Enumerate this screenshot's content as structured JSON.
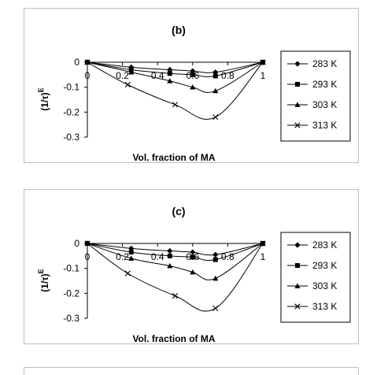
{
  "chart_data": [
    {
      "type": "line",
      "title": "(b)",
      "xlabel": "Vol. fraction of MA",
      "ylabel": "(1/τ)",
      "ylabel_superscript": "E",
      "xlim": [
        0,
        1
      ],
      "ylim": [
        -0.3,
        0
      ],
      "xticks": [
        "0",
        "0.2",
        "0.4",
        "0.6",
        "0.8",
        "1"
      ],
      "yticks": [
        "0",
        "-0.1",
        "-0.2",
        "-0.3"
      ],
      "grid": false,
      "legend_position": "right",
      "series": [
        {
          "name": "283 K",
          "marker": "diamond",
          "x": [
            0,
            0.25,
            0.47,
            0.6,
            0.73,
            1
          ],
          "y": [
            0,
            -0.02,
            -0.03,
            -0.035,
            -0.04,
            0
          ]
        },
        {
          "name": "293 K",
          "marker": "square",
          "x": [
            0,
            0.25,
            0.47,
            0.6,
            0.73,
            1
          ],
          "y": [
            0,
            -0.03,
            -0.045,
            -0.05,
            -0.055,
            0
          ]
        },
        {
          "name": "303 K",
          "marker": "triangle",
          "x": [
            0,
            0.25,
            0.47,
            0.6,
            0.73,
            1
          ],
          "y": [
            0,
            -0.04,
            -0.075,
            -0.1,
            -0.115,
            0
          ]
        },
        {
          "name": "313 K",
          "marker": "x",
          "x": [
            0,
            0.23,
            0.5,
            0.73,
            1
          ],
          "y": [
            0,
            -0.09,
            -0.17,
            -0.22,
            0
          ]
        }
      ]
    },
    {
      "type": "line",
      "title": "(c)",
      "xlabel": "Vol. fraction of MA",
      "ylabel": "(1/τ)",
      "ylabel_superscript": "E",
      "xlim": [
        0,
        1
      ],
      "ylim": [
        -0.3,
        0
      ],
      "xticks": [
        "0",
        "0.2",
        "0.4",
        "0.6",
        "0.8",
        "1"
      ],
      "yticks": [
        "0",
        "-0.1",
        "-0.2",
        "-0.3"
      ],
      "grid": false,
      "legend_position": "right",
      "series": [
        {
          "name": "283 K",
          "marker": "diamond",
          "x": [
            0,
            0.25,
            0.47,
            0.6,
            0.73,
            1
          ],
          "y": [
            0,
            -0.02,
            -0.03,
            -0.035,
            -0.045,
            0
          ]
        },
        {
          "name": "293 K",
          "marker": "square",
          "x": [
            0,
            0.25,
            0.47,
            0.6,
            0.73,
            1
          ],
          "y": [
            0,
            -0.035,
            -0.05,
            -0.055,
            -0.065,
            0
          ]
        },
        {
          "name": "303 K",
          "marker": "triangle",
          "x": [
            0,
            0.25,
            0.47,
            0.6,
            0.73,
            1
          ],
          "y": [
            0,
            -0.06,
            -0.09,
            -0.115,
            -0.14,
            0
          ]
        },
        {
          "name": "313 K",
          "marker": "x",
          "x": [
            0,
            0.23,
            0.5,
            0.73,
            1
          ],
          "y": [
            0,
            -0.12,
            -0.21,
            -0.26,
            0
          ]
        }
      ]
    }
  ]
}
